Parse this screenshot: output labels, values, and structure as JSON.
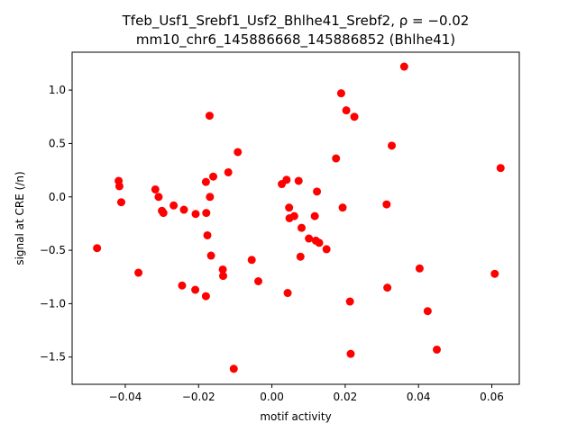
{
  "chart_data": {
    "type": "scatter",
    "title_line1": "Tfeb_Usf1_Srebf1_Usf2_Bhlhe41_Srebf2, ρ = −0.02",
    "title_line2": "mm10_chr6_145886668_145886852 (Bhlhe41)",
    "xlabel": "motif activity",
    "ylabel": "signal at CRE (/n)",
    "xlim": [
      -0.0545,
      0.0675
    ],
    "ylim": [
      -1.755,
      1.355
    ],
    "xticks": [
      -0.04,
      -0.02,
      0.0,
      0.02,
      0.04,
      0.06
    ],
    "xtick_labels": [
      "−0.04",
      "−0.02",
      "0.00",
      "0.02",
      "0.04",
      "0.06"
    ],
    "yticks": [
      -1.5,
      -1.0,
      -0.5,
      0.0,
      0.5,
      1.0
    ],
    "ytick_labels": [
      "−1.5",
      "−1.0",
      "−0.5",
      "0.0",
      "0.5",
      "1.0"
    ],
    "grid": false,
    "marker_color": "#ff0000",
    "points": [
      {
        "x": -0.0477,
        "y": -0.48
      },
      {
        "x": -0.0418,
        "y": 0.15
      },
      {
        "x": -0.0416,
        "y": 0.1
      },
      {
        "x": -0.0411,
        "y": -0.05
      },
      {
        "x": -0.0364,
        "y": -0.71
      },
      {
        "x": -0.0318,
        "y": 0.07
      },
      {
        "x": -0.0309,
        "y": 0.0
      },
      {
        "x": -0.03,
        "y": -0.13
      },
      {
        "x": -0.0296,
        "y": -0.15
      },
      {
        "x": -0.0268,
        "y": -0.08
      },
      {
        "x": -0.0245,
        "y": -0.83
      },
      {
        "x": -0.024,
        "y": -0.12
      },
      {
        "x": -0.0209,
        "y": -0.87
      },
      {
        "x": -0.0208,
        "y": -0.16
      },
      {
        "x": -0.018,
        "y": 0.14
      },
      {
        "x": -0.018,
        "y": -0.93
      },
      {
        "x": -0.0179,
        "y": -0.15
      },
      {
        "x": -0.0176,
        "y": -0.36
      },
      {
        "x": -0.017,
        "y": 0.76
      },
      {
        "x": -0.0169,
        "y": 0.0
      },
      {
        "x": -0.0166,
        "y": -0.55
      },
      {
        "x": -0.016,
        "y": 0.19
      },
      {
        "x": -0.0134,
        "y": -0.68
      },
      {
        "x": -0.0133,
        "y": -0.74
      },
      {
        "x": -0.0119,
        "y": 0.23
      },
      {
        "x": -0.0104,
        "y": -1.61
      },
      {
        "x": -0.0093,
        "y": 0.42
      },
      {
        "x": -0.0055,
        "y": -0.59
      },
      {
        "x": -0.0037,
        "y": -0.79
      },
      {
        "x": 0.0027,
        "y": 0.12
      },
      {
        "x": 0.004,
        "y": 0.16
      },
      {
        "x": 0.0043,
        "y": -0.9
      },
      {
        "x": 0.0047,
        "y": -0.1
      },
      {
        "x": 0.0048,
        "y": -0.2
      },
      {
        "x": 0.0061,
        "y": -0.18
      },
      {
        "x": 0.0073,
        "y": 0.15
      },
      {
        "x": 0.0078,
        "y": -0.56
      },
      {
        "x": 0.0081,
        "y": -0.29
      },
      {
        "x": 0.0101,
        "y": -0.39
      },
      {
        "x": 0.0117,
        "y": -0.18
      },
      {
        "x": 0.012,
        "y": -0.41
      },
      {
        "x": 0.0123,
        "y": 0.05
      },
      {
        "x": 0.0129,
        "y": -0.43
      },
      {
        "x": 0.0149,
        "y": -0.49
      },
      {
        "x": 0.0175,
        "y": 0.36
      },
      {
        "x": 0.0189,
        "y": 0.97
      },
      {
        "x": 0.0193,
        "y": -0.1
      },
      {
        "x": 0.0203,
        "y": 0.81
      },
      {
        "x": 0.0213,
        "y": -0.98
      },
      {
        "x": 0.0215,
        "y": -1.47
      },
      {
        "x": 0.0225,
        "y": 0.75
      },
      {
        "x": 0.0313,
        "y": -0.07
      },
      {
        "x": 0.0315,
        "y": -0.85
      },
      {
        "x": 0.0327,
        "y": 0.48
      },
      {
        "x": 0.0361,
        "y": 1.22
      },
      {
        "x": 0.0403,
        "y": -0.67
      },
      {
        "x": 0.0425,
        "y": -1.07
      },
      {
        "x": 0.045,
        "y": -1.43
      },
      {
        "x": 0.0608,
        "y": -0.72
      },
      {
        "x": 0.0624,
        "y": 0.27
      }
    ]
  }
}
